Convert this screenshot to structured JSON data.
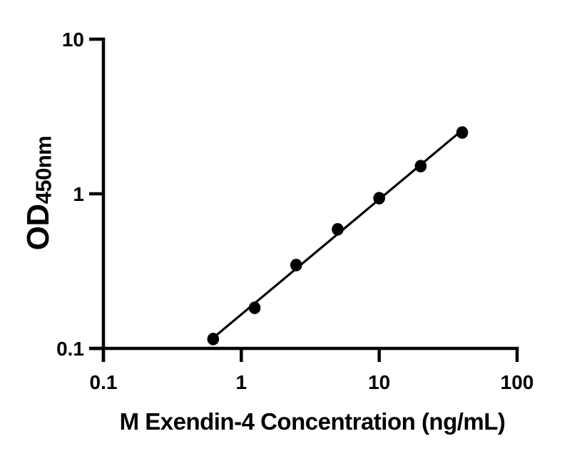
{
  "figure": {
    "background": "#ffffff",
    "ink": "#000000"
  },
  "chart_data": {
    "type": "scatter",
    "title": "",
    "xlabel": "M Exendin-4 Concentration (ng/mL)",
    "ylabel_main": "OD",
    "ylabel_sub": "450nm",
    "x_scale": "log",
    "y_scale": "log",
    "xlim": [
      0.1,
      100
    ],
    "ylim": [
      0.1,
      10
    ],
    "x_ticks": [
      0.1,
      1,
      10,
      100
    ],
    "x_tick_labels": [
      "0.1",
      "1",
      "10",
      "100"
    ],
    "y_ticks": [
      0.1,
      1,
      10
    ],
    "y_tick_labels": [
      "0.1",
      "1",
      "10"
    ],
    "grid": false,
    "legend": null,
    "series": [
      {
        "name": "standard-curve",
        "marker": "filled-circle",
        "marker_color": "#000000",
        "line_color": "#000000",
        "fit": "linear-regression-loglog",
        "x": [
          0.625,
          1.25,
          2.5,
          5,
          10,
          20,
          40
        ],
        "y": [
          0.115,
          0.183,
          0.346,
          0.589,
          0.937,
          1.51,
          2.49
        ]
      }
    ]
  }
}
